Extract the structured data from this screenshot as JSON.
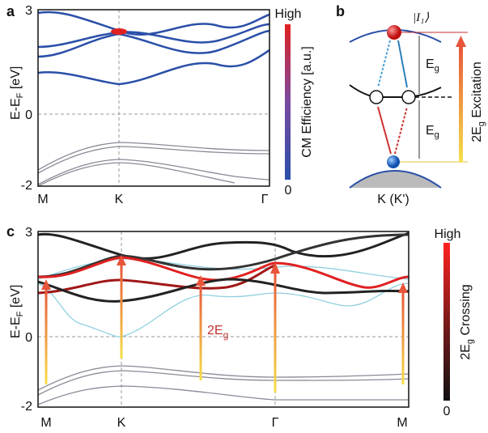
{
  "panel_a": {
    "letter": "a",
    "ylabel": {
      "main": "E-E",
      "sub": "F",
      "rest": " [eV]"
    },
    "yticks": [
      "3",
      "0",
      "-2"
    ],
    "xticks": [
      "M",
      "K",
      "Γ"
    ],
    "colorbar": {
      "top": "High",
      "bottom": "0",
      "label": "CM Efficiency [a.u.]"
    }
  },
  "panel_b": {
    "letter": "b",
    "state": "|I₁⟩",
    "gap_label": {
      "main": "E",
      "sub": "g"
    },
    "excitation": {
      "main": "2E",
      "sub": "g",
      "rest": " Excitation"
    },
    "xlabel": "K (K')"
  },
  "panel_c": {
    "letter": "c",
    "ylabel": {
      "main": "E-E",
      "sub": "F",
      "rest": " [eV]"
    },
    "yticks": [
      "3",
      "0",
      "-2"
    ],
    "xticks": [
      "M",
      "K",
      "Γ",
      "M"
    ],
    "annotation": {
      "main": "2E",
      "sub": "g"
    },
    "colorbar": {
      "top": "High",
      "bottom": "0",
      "label": {
        "main": "2E",
        "sub": "g",
        "rest": " Crossing"
      }
    }
  }
}
